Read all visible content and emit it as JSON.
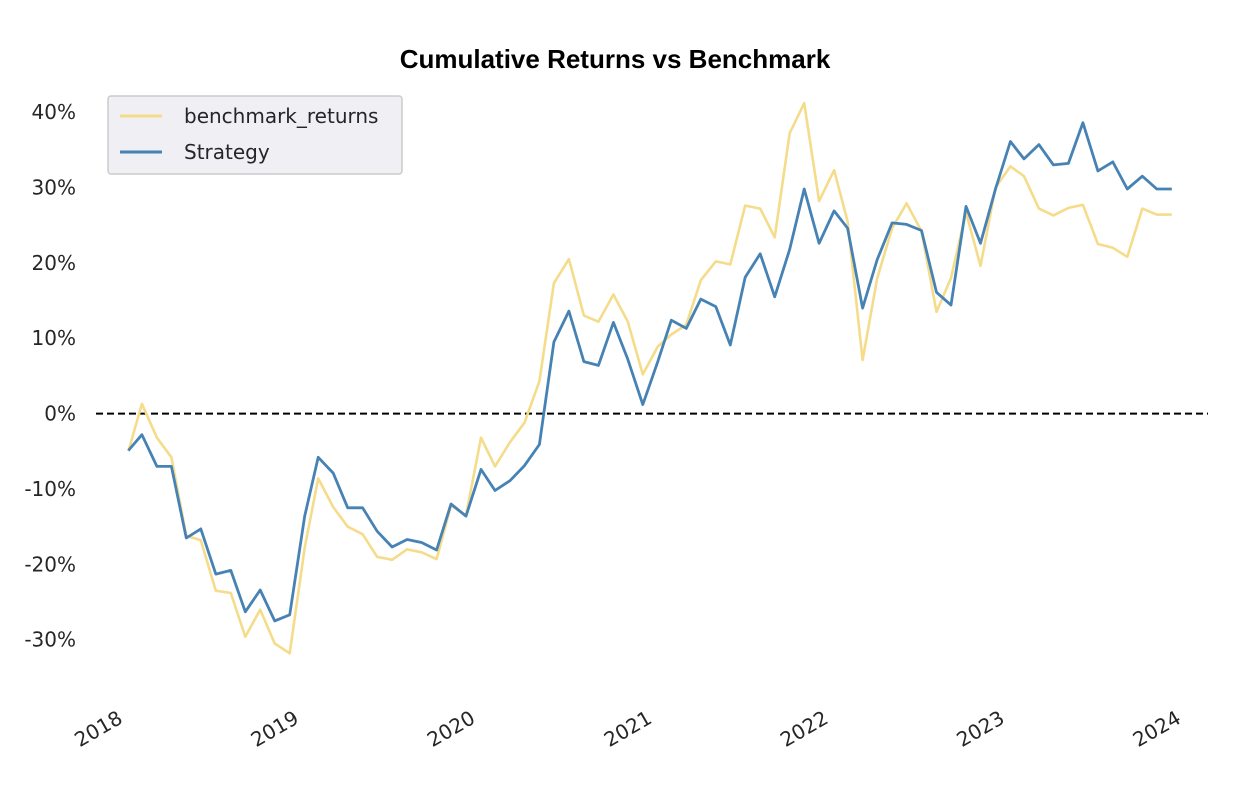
{
  "chart_data": {
    "type": "line",
    "title": "Cumulative Returns vs Benchmark",
    "xlabel": "",
    "ylabel": "",
    "x_tick_labels": [
      "2018",
      "2019",
      "2020",
      "2021",
      "2022",
      "2023",
      "2024"
    ],
    "y_tick_labels": [
      "-30%",
      "-20%",
      "-10%",
      "0%",
      "10%",
      "20%",
      "30%",
      "40%"
    ],
    "y_ticks": [
      -30,
      -20,
      -10,
      0,
      10,
      20,
      30,
      40
    ],
    "ylim": [
      -38,
      44
    ],
    "xlim": [
      "2017-11-25",
      "2024-03-15"
    ],
    "reference_line": {
      "y": 0,
      "style": "dashed",
      "color": "#000000"
    },
    "grid": false,
    "legend": {
      "position": "top-left",
      "entries": [
        "benchmark_returns",
        "Strategy"
      ]
    },
    "x": [
      "2018-01-31",
      "2018-02-28",
      "2018-03-31",
      "2018-04-30",
      "2018-05-31",
      "2018-06-30",
      "2018-07-31",
      "2018-08-31",
      "2018-09-30",
      "2018-10-31",
      "2018-11-30",
      "2018-12-31",
      "2019-01-31",
      "2019-02-28",
      "2019-03-31",
      "2019-04-30",
      "2019-05-31",
      "2019-06-30",
      "2019-07-31",
      "2019-08-31",
      "2019-09-30",
      "2019-10-31",
      "2019-11-30",
      "2019-12-31",
      "2020-01-31",
      "2020-02-29",
      "2020-03-31",
      "2020-04-30",
      "2020-05-31",
      "2020-06-30",
      "2020-07-31",
      "2020-08-31",
      "2020-09-30",
      "2020-10-31",
      "2020-11-30",
      "2020-12-31",
      "2021-01-31",
      "2021-02-28",
      "2021-03-31",
      "2021-04-30",
      "2021-05-31",
      "2021-06-30",
      "2021-07-31",
      "2021-08-31",
      "2021-09-30",
      "2021-10-31",
      "2021-11-30",
      "2021-12-31",
      "2022-01-31",
      "2022-02-28",
      "2022-03-31",
      "2022-04-30",
      "2022-05-31",
      "2022-06-30",
      "2022-07-31",
      "2022-08-31",
      "2022-09-30",
      "2022-10-31",
      "2022-11-30",
      "2022-12-31",
      "2023-01-31",
      "2023-02-28",
      "2023-03-31",
      "2023-04-30",
      "2023-05-31",
      "2023-06-30",
      "2023-07-31",
      "2023-08-31",
      "2023-09-30",
      "2023-10-31",
      "2023-11-30",
      "2023-12-31"
    ],
    "series": [
      {
        "name": "benchmark_returns",
        "color": "#f5dc8a",
        "values": [
          -5.0,
          1.3,
          -3.2,
          -5.8,
          -16.2,
          -16.8,
          -23.5,
          -23.8,
          -29.6,
          -26.0,
          -30.5,
          -31.8,
          -17.8,
          -8.6,
          -12.4,
          -15.0,
          -16.0,
          -19.0,
          -19.4,
          -18.0,
          -18.4,
          -19.3,
          -12.2,
          -13.5,
          -3.2,
          -7.0,
          -3.8,
          -1.2,
          4.3,
          17.3,
          20.5,
          13.0,
          12.2,
          15.8,
          12.2,
          5.2,
          8.9,
          10.5,
          11.8,
          17.7,
          20.2,
          19.8,
          27.6,
          27.2,
          23.4,
          37.2,
          41.2,
          28.2,
          32.3,
          25.5,
          7.1,
          17.9,
          24.6,
          27.9,
          24.2,
          13.5,
          18.0,
          26.7,
          19.6,
          30.0,
          32.8,
          31.5,
          27.2,
          26.3,
          27.3,
          27.7,
          22.5,
          22.0,
          20.8,
          27.2,
          26.4,
          26.4
        ]
      },
      {
        "name": "Strategy",
        "color": "#4682b4",
        "values": [
          -4.9,
          -2.8,
          -7.0,
          -7.0,
          -16.5,
          -15.3,
          -21.3,
          -20.8,
          -26.3,
          -23.4,
          -27.5,
          -26.7,
          -13.6,
          -5.8,
          -7.9,
          -12.5,
          -12.5,
          -15.6,
          -17.7,
          -16.7,
          -17.1,
          -18.1,
          -12.0,
          -13.6,
          -7.4,
          -10.2,
          -8.9,
          -6.9,
          -4.1,
          9.5,
          13.6,
          6.9,
          6.4,
          12.1,
          7.2,
          1.2,
          6.9,
          12.4,
          11.3,
          15.2,
          14.2,
          9.1,
          18.1,
          21.2,
          15.5,
          21.8,
          29.8,
          22.6,
          26.9,
          24.6,
          14.0,
          20.4,
          25.3,
          25.1,
          24.3,
          16.1,
          14.4,
          27.5,
          22.6,
          29.8,
          36.1,
          33.8,
          35.7,
          33.0,
          33.2,
          38.6,
          32.2,
          33.4,
          29.8,
          31.5,
          29.8,
          29.8
        ]
      }
    ]
  }
}
